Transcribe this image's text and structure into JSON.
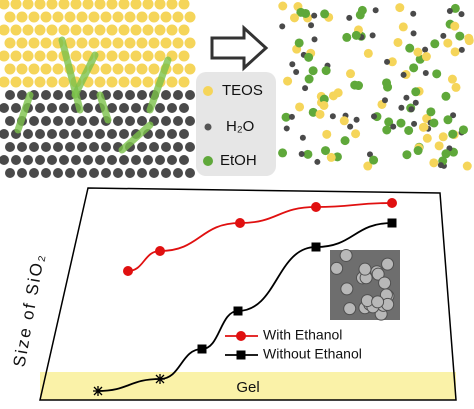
{
  "schematic": {
    "legend": [
      "TEOS",
      "H₂O",
      "EtOH"
    ]
  },
  "chart_data": {
    "type": "line",
    "ylabel": "Size of SiO₂",
    "band_label": "Gel",
    "xlim": [
      -0.5,
      10
    ],
    "ylim": [
      -2.5,
      103.5
    ],
    "series": [
      {
        "name": "With Ethanol",
        "color": "#e01010",
        "marker": "circle",
        "x": [
          1.7,
          2.5,
          4.5,
          6.4,
          8.3
        ],
        "values": [
          62,
          72,
          86,
          94,
          96
        ]
      },
      {
        "name": "Without Ethanol",
        "color": "#000000",
        "marker": "square",
        "x": [
          0.95,
          2.5,
          3.55,
          4.45,
          6.4,
          8.3
        ],
        "values": [
          2,
          8,
          23,
          42,
          74,
          86
        ],
        "point_markers": [
          "star",
          "star",
          "square",
          "square",
          "square",
          "square"
        ]
      }
    ]
  }
}
